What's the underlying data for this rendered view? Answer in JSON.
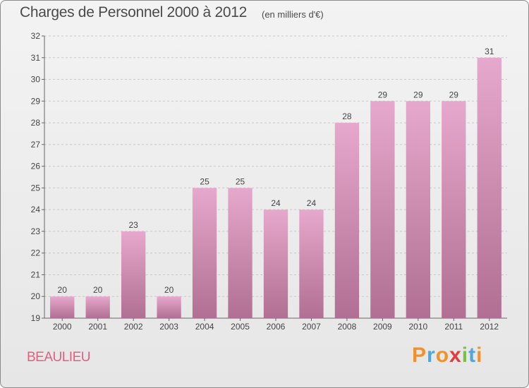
{
  "header": {
    "title": "Charges de Personnel 2000 à 2012",
    "subtitle": "(en milliers d'€)"
  },
  "footer": {
    "commune": "BEAULIEU",
    "commune_color": "#e0607e",
    "logo_letters": [
      "P",
      "r",
      "o",
      "x",
      "i",
      "t",
      "i"
    ],
    "logo_colors": [
      "#f0922b",
      "#4ea6dc",
      "#f0922b",
      "#e23c3c",
      "#7ac143",
      "#4ea6dc",
      "#f0922b"
    ]
  },
  "chart_data": {
    "type": "bar",
    "title": "Charges de Personnel 2000 à 2012",
    "subtitle": "(en milliers d'€)",
    "categories": [
      "2000",
      "2001",
      "2002",
      "2003",
      "2004",
      "2005",
      "2006",
      "2007",
      "2008",
      "2009",
      "2010",
      "2011",
      "2012"
    ],
    "values": [
      20,
      20,
      23,
      20,
      25,
      25,
      24,
      24,
      28,
      29,
      29,
      29,
      31
    ],
    "ylim": [
      19,
      32
    ],
    "yticks": [
      19,
      20,
      21,
      22,
      23,
      24,
      25,
      26,
      27,
      28,
      29,
      30,
      31,
      32
    ],
    "grid": true,
    "bar_color_top": "#e6a8cc",
    "bar_color_bottom": "#b06f93"
  }
}
